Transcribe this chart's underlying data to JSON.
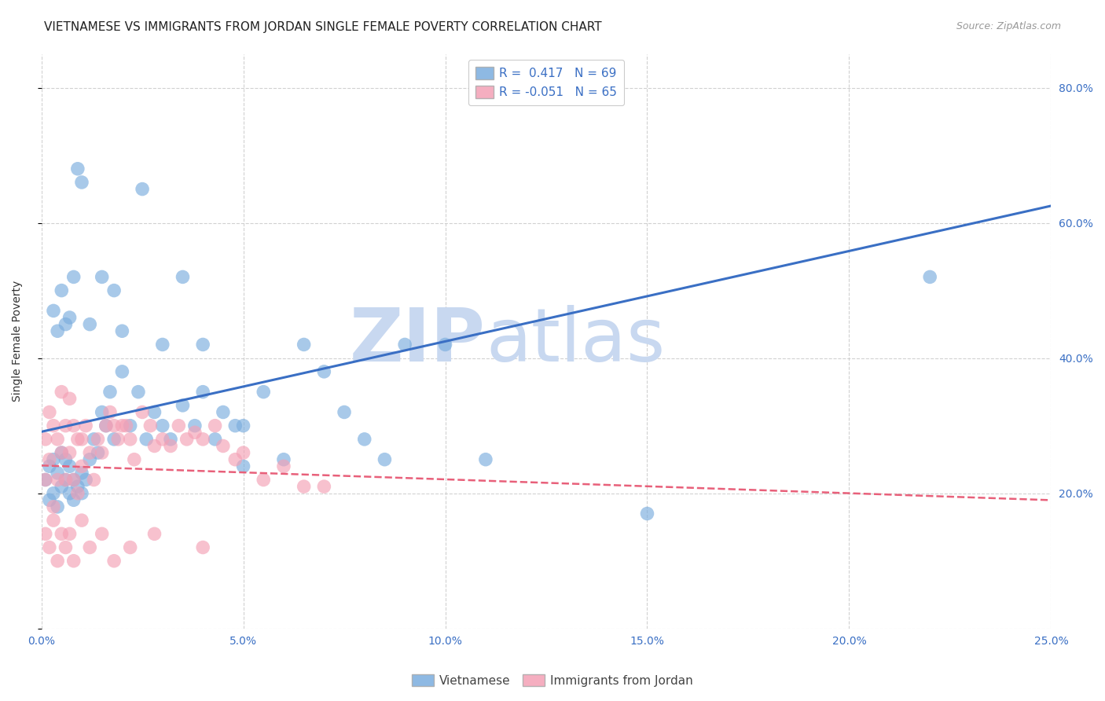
{
  "title": "VIETNAMESE VS IMMIGRANTS FROM JORDAN SINGLE FEMALE POVERTY CORRELATION CHART",
  "source": "Source: ZipAtlas.com",
  "ylabel": "Single Female Poverty",
  "xlim": [
    0.0,
    0.25
  ],
  "ylim": [
    0.0,
    0.85
  ],
  "xticks": [
    0.0,
    0.05,
    0.1,
    0.15,
    0.2,
    0.25
  ],
  "ytick_vals": [
    0.0,
    0.2,
    0.4,
    0.6,
    0.8
  ],
  "title_fontsize": 11,
  "source_fontsize": 9,
  "label_fontsize": 10,
  "tick_fontsize": 10,
  "background_color": "#ffffff",
  "grid_color": "#cccccc",
  "blue_color": "#7aadde",
  "pink_color": "#f4a0b5",
  "blue_line_color": "#3a6fc4",
  "pink_line_color": "#e8607a",
  "blue_R": 0.417,
  "blue_N": 69,
  "pink_R": -0.051,
  "pink_N": 65,
  "blue_x": [
    0.001,
    0.002,
    0.002,
    0.003,
    0.003,
    0.004,
    0.004,
    0.005,
    0.005,
    0.006,
    0.006,
    0.007,
    0.007,
    0.008,
    0.008,
    0.009,
    0.01,
    0.01,
    0.011,
    0.012,
    0.013,
    0.014,
    0.015,
    0.016,
    0.017,
    0.018,
    0.02,
    0.022,
    0.024,
    0.026,
    0.028,
    0.03,
    0.032,
    0.035,
    0.038,
    0.04,
    0.043,
    0.045,
    0.048,
    0.05,
    0.055,
    0.06,
    0.065,
    0.07,
    0.075,
    0.08,
    0.085,
    0.09,
    0.1,
    0.11,
    0.003,
    0.004,
    0.005,
    0.006,
    0.007,
    0.008,
    0.009,
    0.01,
    0.012,
    0.015,
    0.018,
    0.02,
    0.025,
    0.03,
    0.035,
    0.04,
    0.05,
    0.15,
    0.22
  ],
  "blue_y": [
    0.22,
    0.19,
    0.24,
    0.2,
    0.25,
    0.18,
    0.23,
    0.21,
    0.26,
    0.22,
    0.25,
    0.2,
    0.24,
    0.19,
    0.22,
    0.21,
    0.23,
    0.2,
    0.22,
    0.25,
    0.28,
    0.26,
    0.32,
    0.3,
    0.35,
    0.28,
    0.38,
    0.3,
    0.35,
    0.28,
    0.32,
    0.3,
    0.28,
    0.33,
    0.3,
    0.35,
    0.28,
    0.32,
    0.3,
    0.3,
    0.35,
    0.25,
    0.42,
    0.38,
    0.32,
    0.28,
    0.25,
    0.42,
    0.42,
    0.25,
    0.47,
    0.44,
    0.5,
    0.45,
    0.46,
    0.52,
    0.68,
    0.66,
    0.45,
    0.52,
    0.5,
    0.44,
    0.65,
    0.42,
    0.52,
    0.42,
    0.24,
    0.17,
    0.52
  ],
  "pink_x": [
    0.001,
    0.001,
    0.002,
    0.002,
    0.003,
    0.003,
    0.004,
    0.004,
    0.005,
    0.005,
    0.006,
    0.006,
    0.007,
    0.007,
    0.008,
    0.008,
    0.009,
    0.009,
    0.01,
    0.01,
    0.011,
    0.012,
    0.013,
    0.014,
    0.015,
    0.016,
    0.017,
    0.018,
    0.019,
    0.02,
    0.021,
    0.022,
    0.023,
    0.025,
    0.027,
    0.028,
    0.03,
    0.032,
    0.034,
    0.036,
    0.038,
    0.04,
    0.043,
    0.045,
    0.048,
    0.05,
    0.055,
    0.06,
    0.065,
    0.07,
    0.001,
    0.002,
    0.003,
    0.004,
    0.005,
    0.006,
    0.007,
    0.008,
    0.01,
    0.012,
    0.015,
    0.018,
    0.022,
    0.028,
    0.04
  ],
  "pink_y": [
    0.28,
    0.22,
    0.32,
    0.25,
    0.3,
    0.18,
    0.28,
    0.22,
    0.35,
    0.26,
    0.3,
    0.22,
    0.34,
    0.26,
    0.3,
    0.22,
    0.28,
    0.2,
    0.24,
    0.28,
    0.3,
    0.26,
    0.22,
    0.28,
    0.26,
    0.3,
    0.32,
    0.3,
    0.28,
    0.3,
    0.3,
    0.28,
    0.25,
    0.32,
    0.3,
    0.27,
    0.28,
    0.27,
    0.3,
    0.28,
    0.29,
    0.28,
    0.3,
    0.27,
    0.25,
    0.26,
    0.22,
    0.24,
    0.21,
    0.21,
    0.14,
    0.12,
    0.16,
    0.1,
    0.14,
    0.12,
    0.14,
    0.1,
    0.16,
    0.12,
    0.14,
    0.1,
    0.12,
    0.14,
    0.12
  ],
  "legend_blue_label": "Vietnamese",
  "legend_pink_label": "Immigrants from Jordan",
  "watermark_top": "ZIP",
  "watermark_bottom": "atlas",
  "watermark_color": "#c8d8f0",
  "watermark_fontsize": 68
}
